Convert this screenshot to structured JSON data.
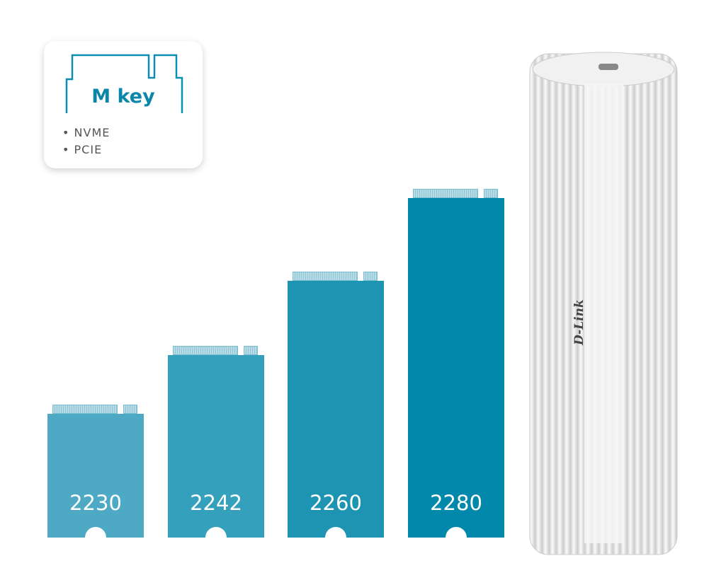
{
  "key_card": {
    "title": "M key",
    "features": [
      "NVME",
      "PCIE"
    ]
  },
  "ssds": [
    {
      "label": "2230",
      "color": "#4eaac4"
    },
    {
      "label": "2242",
      "color": "#35a0bb"
    },
    {
      "label": "2260",
      "color": "#1c94b2"
    },
    {
      "label": "2280",
      "color": "#0288ab"
    }
  ],
  "enclosure": {
    "brand": "D-Link"
  }
}
